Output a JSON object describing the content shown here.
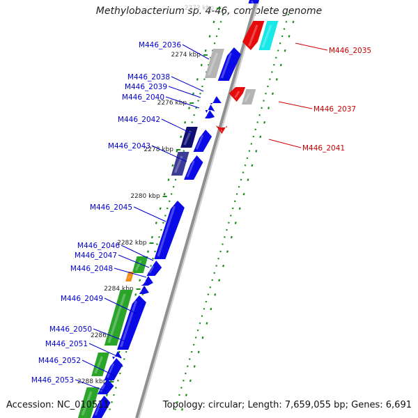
{
  "title": "Methylobacterium sp. 4-46, complete genome",
  "footer": {
    "accession": "Accession: NC_010511",
    "topology": "Topology: circular; Length: 7,659,055 bp; Genes: 6,691"
  },
  "colors": {
    "forward_cds": "#0a0ae6",
    "reverse_cds": "#e60a0a",
    "rna_gene": "#2aa52a",
    "highlight_cyan": "#18e8e8",
    "grey_feature": "#b4b4b4",
    "dark_navy": "#101070",
    "slate_blue": "#3c3c96",
    "orange_feature": "#f08c14",
    "tick_green": "#1a8c1a",
    "label_blue": "#0000cc",
    "label_red": "#cc0000",
    "backbone": "#909090"
  },
  "ruler": {
    "ticks": [
      "2272 kbp",
      "2274 kbp",
      "2276 kbp",
      "2278 kbp",
      "2280 kbp",
      "2282 kbp",
      "2284 kbp",
      "2286 kbp",
      "2288 kbp"
    ]
  },
  "genes": {
    "left": [
      "M446_2036",
      "M446_2038",
      "M446_2039",
      "M446_2040",
      "M446_2042",
      "M446_2043",
      "M446_2045",
      "M446_2046",
      "M446_2047",
      "M446_2048",
      "M446_2049",
      "M446_2050",
      "M446_2051",
      "M446_2052",
      "M446_2053"
    ],
    "right": [
      "M446_2035",
      "M446_2037",
      "M446_2041"
    ]
  }
}
